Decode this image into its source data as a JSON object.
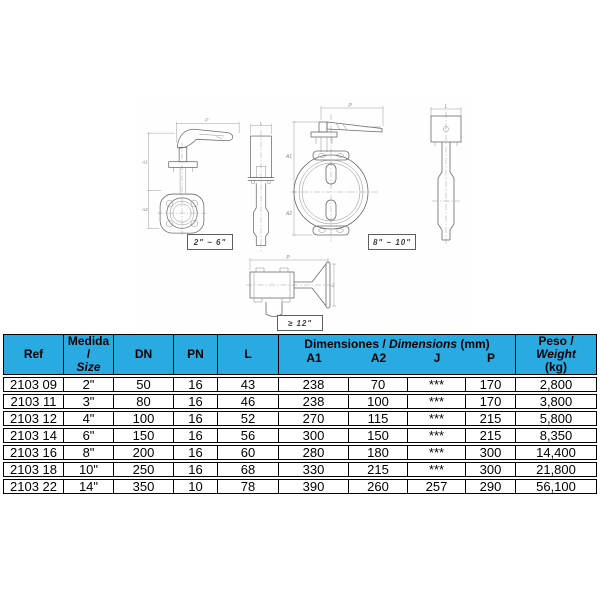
{
  "drawings": {
    "range_labels": {
      "small": "2\" ~ 6\"",
      "medium": "8\" ~ 10\"",
      "large": "≥ 12\""
    },
    "dim_letters": {
      "p": "P",
      "a1": "A1",
      "a2": "A2",
      "l": "L",
      "j": "J"
    }
  },
  "table": {
    "colors": {
      "header_bg": "#29ABE2",
      "border": "#000000",
      "text": "#000000"
    },
    "header": {
      "ref": "Ref",
      "size_line1": "Medida",
      "size_line2": "/",
      "size_line3": "Size",
      "dn": "DN",
      "pn": "PN",
      "l": "L",
      "dim_title_1": "Dimensiones / ",
      "dim_title_2": "Dimensions",
      "dim_title_3": " (mm)",
      "sub": [
        "A1",
        "A2",
        "J",
        "P"
      ],
      "peso_line1": "Peso /",
      "peso_line2": "Weight",
      "peso_line3": "(kg)"
    },
    "rows": [
      [
        "2103 09",
        "2\"",
        "50",
        "16",
        "43",
        "238",
        "70",
        "***",
        "170",
        "2,800"
      ],
      [
        "2103 11",
        "3\"",
        "80",
        "16",
        "46",
        "238",
        "100",
        "***",
        "170",
        "3,800"
      ],
      [
        "2103 12",
        "4\"",
        "100",
        "16",
        "52",
        "270",
        "115",
        "***",
        "215",
        "5,800"
      ],
      [
        "2103 14",
        "6\"",
        "150",
        "16",
        "56",
        "300",
        "150",
        "***",
        "215",
        "8,350"
      ],
      [
        "2103 16",
        "8\"",
        "200",
        "16",
        "60",
        "280",
        "180",
        "***",
        "300",
        "14,400"
      ],
      [
        "2103 18",
        "10\"",
        "250",
        "16",
        "68",
        "330",
        "215",
        "***",
        "300",
        "21,800"
      ],
      [
        "2103 22",
        "14\"",
        "350",
        "10",
        "78",
        "390",
        "260",
        "257",
        "290",
        "56,100"
      ]
    ]
  }
}
